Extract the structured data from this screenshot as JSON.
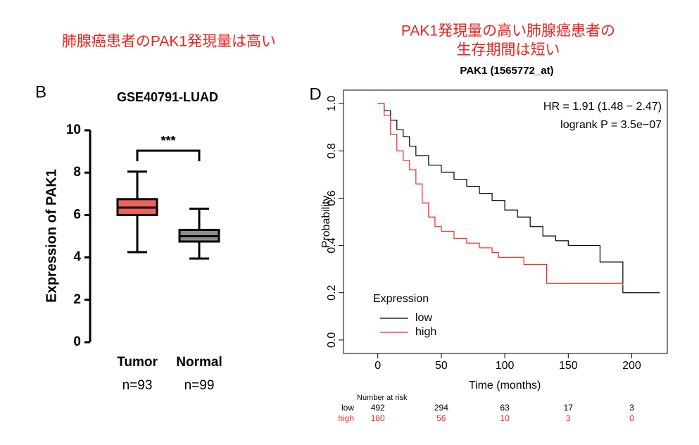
{
  "chart_data": [
    {
      "type": "box",
      "panel_label": "B",
      "heading": "肺腺癌患者のPAK1発現量は高い",
      "title": "GSE40791-LUAD",
      "y_label": "Expression of PAK1",
      "categories": [
        "Tumor",
        "Normal"
      ],
      "sample_sizes": [
        "n=93",
        "n=99"
      ],
      "boxes": [
        {
          "min": 4.25,
          "q1": 6.0,
          "median": 6.35,
          "q3": 6.75,
          "max": 8.05,
          "color": "#f0625f"
        },
        {
          "min": 3.95,
          "q1": 4.75,
          "median": 5.0,
          "q3": 5.3,
          "max": 6.3,
          "color": "#8c8c8c"
        }
      ],
      "significance": "***",
      "ylim": [
        0,
        10
      ],
      "yticks": [
        0,
        2,
        4,
        6,
        8,
        10
      ]
    },
    {
      "type": "survival",
      "panel_label": "D",
      "heading": [
        "PAK1発現量の高い肺腺癌患者の",
        "生存期間は短い"
      ],
      "title": "PAK1 (1565772_at)",
      "x_label": "Time (months)",
      "y_label": "Probability",
      "annotations": [
        "HR = 1.91 (1.48 − 2.47)",
        "logrank P = 3.5e−07"
      ],
      "legend_title": "Expression",
      "series": [
        {
          "name": "low",
          "color": "#000000",
          "x": [
            0,
            5,
            10,
            15,
            20,
            25,
            30,
            40,
            50,
            60,
            70,
            80,
            90,
            100,
            110,
            120,
            130,
            140,
            150,
            160,
            170,
            175,
            180,
            190,
            193,
            222
          ],
          "values": [
            1,
            0.97,
            0.93,
            0.89,
            0.86,
            0.82,
            0.78,
            0.74,
            0.71,
            0.68,
            0.65,
            0.62,
            0.59,
            0.55,
            0.52,
            0.48,
            0.44,
            0.42,
            0.4,
            0.4,
            0.4,
            0.33,
            0.33,
            0.33,
            0.2,
            0.2
          ]
        },
        {
          "name": "high",
          "color": "#ee2a24",
          "x": [
            0,
            5,
            10,
            15,
            20,
            25,
            30,
            35,
            40,
            45,
            50,
            60,
            70,
            80,
            90,
            95,
            100,
            110,
            115,
            120,
            130,
            133,
            150,
            170,
            193
          ],
          "values": [
            1,
            0.95,
            0.87,
            0.8,
            0.76,
            0.72,
            0.66,
            0.58,
            0.52,
            0.48,
            0.46,
            0.43,
            0.41,
            0.39,
            0.37,
            0.35,
            0.35,
            0.35,
            0.32,
            0.32,
            0.32,
            0.24,
            0.24,
            0.24,
            0.23
          ]
        }
      ],
      "risk_table": {
        "title": "Number at risk",
        "rows": [
          {
            "name": "low",
            "color": "#000000",
            "counts": [
              492,
              294,
              63,
              17,
              3
            ]
          },
          {
            "name": "high",
            "color": "#ee2a24",
            "counts": [
              180,
              56,
              10,
              3,
              0
            ]
          }
        ]
      },
      "xlim": [
        -27,
        228
      ],
      "xticks": [
        0,
        50,
        100,
        150,
        200
      ],
      "ylim": [
        -0.057,
        1.057
      ],
      "yticks": [
        {
          "value": 0,
          "label": "0.0"
        },
        {
          "value": 0.2,
          "label": "0.2"
        },
        {
          "value": 0.4,
          "label": "0.4"
        },
        {
          "value": 0.6,
          "label": "0.6"
        },
        {
          "value": 0.8,
          "label": "0.8"
        },
        {
          "value": 1,
          "label": "1.0"
        }
      ]
    }
  ]
}
